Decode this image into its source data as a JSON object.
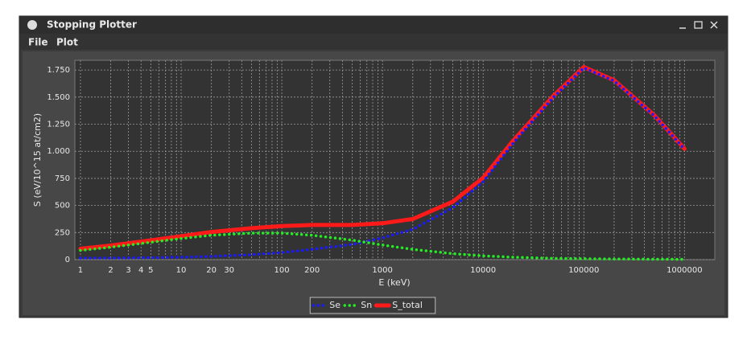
{
  "window": {
    "title": "Stopping Plotter",
    "menu": [
      "File",
      "Plot"
    ]
  },
  "chart_data": {
    "type": "line",
    "x_label": "E (keV)",
    "y_label": "S (eV/10^15 at/cm2)",
    "x": [
      1,
      2,
      5,
      10,
      20,
      50,
      100,
      200,
      500,
      1000,
      2000,
      5000,
      10000,
      20000,
      50000,
      100000,
      200000,
      500000,
      1000000
    ],
    "series": [
      {
        "name": "Se",
        "color": "#1a1aff",
        "style": "dotted",
        "values": [
          15,
          15,
          18,
          22,
          30,
          45,
          65,
          95,
          140,
          200,
          280,
          480,
          720,
          1080,
          1500,
          1770,
          1650,
          1330,
          1020
        ]
      },
      {
        "name": "Sn",
        "color": "#22ee22",
        "style": "dotted",
        "values": [
          85,
          115,
          160,
          195,
          225,
          245,
          245,
          225,
          180,
          135,
          95,
          55,
          35,
          22,
          12,
          8,
          6,
          4,
          3
        ]
      },
      {
        "name": "S_total",
        "color": "#ff1a1a",
        "style": "solid",
        "values": [
          100,
          130,
          178,
          217,
          255,
          290,
          310,
          320,
          320,
          335,
          375,
          535,
          755,
          1102,
          1512,
          1778,
          1656,
          1334,
          1023
        ]
      }
    ],
    "xlog": true,
    "xlim": [
      0.88,
      2000000
    ],
    "xticks": [
      1,
      2,
      3,
      4,
      5,
      10,
      20,
      30,
      100,
      200,
      1000,
      10000,
      100000,
      1000000
    ],
    "xticks_minor": [
      6,
      7,
      8,
      9,
      40,
      50,
      60,
      70,
      80,
      90,
      300,
      400,
      500,
      600,
      700,
      800,
      900,
      2000,
      3000,
      4000,
      5000,
      6000,
      7000,
      8000,
      9000,
      20000,
      30000,
      40000,
      50000,
      60000,
      70000,
      80000,
      90000,
      200000,
      300000,
      400000,
      500000,
      600000,
      700000,
      800000,
      900000
    ],
    "ylim": [
      0,
      1840
    ],
    "yticks": [
      0,
      250,
      500,
      750,
      {
        "value": 1000,
        "label": "1.000"
      },
      {
        "value": 1250,
        "label": "1.250"
      },
      {
        "value": 1500,
        "label": "1.500"
      },
      {
        "value": 1750,
        "label": "1.750"
      }
    ],
    "grid": true,
    "legend": "bottom"
  }
}
